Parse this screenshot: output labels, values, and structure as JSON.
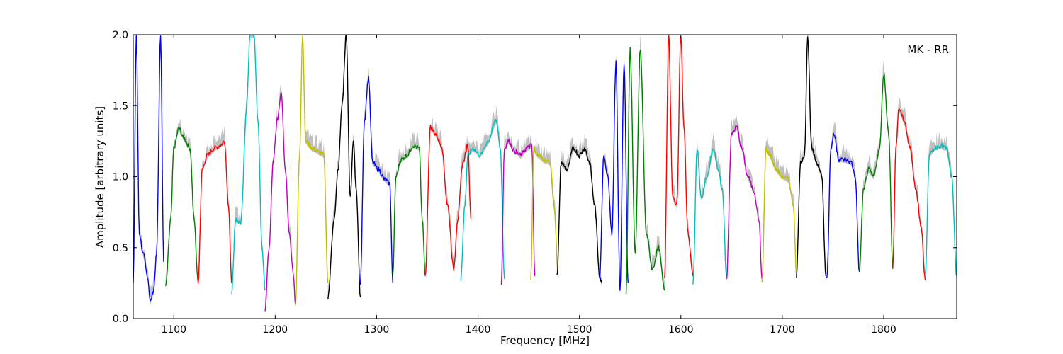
{
  "chart_data": {
    "type": "line",
    "xlabel": "Frequency [MHz]",
    "ylabel": "Amplitude [arbitrary units]",
    "annotation": "MK - RR",
    "xlim": [
      1060,
      1872
    ],
    "ylim": [
      0.0,
      2.0
    ],
    "x_ticks": [
      1100,
      1200,
      1300,
      1400,
      1500,
      1600,
      1700,
      1800
    ],
    "y_ticks": [
      0.0,
      0.5,
      1.0,
      1.5,
      2.0
    ],
    "x_tick_labels": [
      "1100",
      "1200",
      "1300",
      "1400",
      "1500",
      "1600",
      "1700",
      "1800"
    ],
    "y_tick_labels": [
      "0.0",
      "0.5",
      "1.0",
      "1.5",
      "2.0"
    ],
    "grid": false,
    "background_color": "#c0c0c0",
    "band_colors": [
      "#0000ff",
      "#008000",
      "#ff0000",
      "#00bfbf",
      "#bf00bf",
      "#bfbf00",
      "#000000"
    ],
    "series": [
      {
        "color": "#0000ff",
        "x": [
          1060,
          1063,
          1066,
          1070,
          1074,
          1077,
          1080,
          1083,
          1087,
          1090
        ],
        "y": [
          0.25,
          2.0,
          0.6,
          0.45,
          0.3,
          0.12,
          0.2,
          0.45,
          2.0,
          0.4
        ]
      },
      {
        "color": "#008000",
        "x": [
          1092,
          1097,
          1100,
          1105,
          1110,
          1116,
          1120,
          1124
        ],
        "y": [
          0.23,
          0.7,
          1.2,
          1.34,
          1.27,
          1.2,
          0.7,
          0.25
        ]
      },
      {
        "color": "#ff0000",
        "x": [
          1124,
          1128,
          1133,
          1140,
          1146,
          1150,
          1154,
          1157
        ],
        "y": [
          0.25,
          1.05,
          1.15,
          1.2,
          1.22,
          1.25,
          0.8,
          0.25
        ]
      },
      {
        "color": "#00bfbf",
        "x": [
          1157,
          1161,
          1166,
          1172,
          1175,
          1179,
          1183,
          1187,
          1190
        ],
        "y": [
          0.18,
          0.7,
          0.68,
          1.5,
          2.0,
          2.0,
          1.4,
          0.5,
          0.2
        ]
      },
      {
        "color": "#bf00bf",
        "x": [
          1190,
          1194,
          1198,
          1202,
          1206,
          1210,
          1214,
          1218,
          1220
        ],
        "y": [
          0.07,
          0.5,
          1.1,
          1.4,
          1.6,
          1.05,
          0.6,
          0.3,
          0.1
        ]
      },
      {
        "color": "#bfbf00",
        "x": [
          1220,
          1224,
          1227,
          1230,
          1237,
          1244,
          1248,
          1252
        ],
        "y": [
          0.1,
          1.15,
          2.0,
          1.25,
          1.2,
          1.17,
          1.15,
          0.25
        ]
      },
      {
        "color": "#000000",
        "x": [
          1252,
          1258,
          1262,
          1266,
          1270,
          1274,
          1277,
          1280,
          1284
        ],
        "y": [
          0.15,
          0.7,
          1.05,
          1.5,
          2.0,
          0.85,
          1.25,
          0.9,
          0.15
        ]
      },
      {
        "color": "#0000ff",
        "x": [
          1284,
          1288,
          1292,
          1296,
          1302,
          1308,
          1313,
          1316
        ],
        "y": [
          0.25,
          1.4,
          1.7,
          1.1,
          1.05,
          0.98,
          0.95,
          0.25
        ]
      },
      {
        "color": "#008000",
        "x": [
          1316,
          1319,
          1324,
          1330,
          1336,
          1342,
          1345,
          1348
        ],
        "y": [
          0.3,
          1.0,
          1.12,
          1.15,
          1.22,
          1.2,
          0.7,
          0.3
        ]
      },
      {
        "color": "#ff0000",
        "x": [
          1348,
          1353,
          1358,
          1364,
          1370,
          1376,
          1380,
          1385,
          1390,
          1393
        ],
        "y": [
          0.3,
          1.35,
          1.3,
          1.22,
          0.8,
          0.35,
          0.7,
          1.1,
          1.22,
          0.7
        ]
      },
      {
        "color": "#00bfbf",
        "x": [
          1383,
          1387,
          1390,
          1395,
          1402,
          1410,
          1418,
          1422,
          1426
        ],
        "y": [
          0.28,
          0.8,
          1.15,
          1.2,
          1.15,
          1.25,
          1.4,
          1.2,
          0.28
        ]
      },
      {
        "color": "#bf00bf",
        "x": [
          1423,
          1426,
          1430,
          1436,
          1442,
          1448,
          1453,
          1456
        ],
        "y": [
          0.25,
          1.2,
          1.25,
          1.18,
          1.15,
          1.2,
          1.22,
          0.3
        ]
      },
      {
        "color": "#bfbf00",
        "x": [
          1452,
          1455,
          1459,
          1465,
          1471,
          1475,
          1479
        ],
        "y": [
          0.28,
          1.2,
          1.15,
          1.12,
          1.1,
          0.8,
          0.3
        ]
      },
      {
        "color": "#000000",
        "x": [
          1478,
          1482,
          1488,
          1494,
          1500,
          1505,
          1510,
          1515,
          1520,
          1522
        ],
        "y": [
          0.3,
          1.1,
          1.05,
          1.2,
          1.15,
          1.2,
          1.1,
          0.8,
          0.3,
          0.25
        ]
      },
      {
        "color": "#0000ff",
        "x": [
          1520,
          1524,
          1528,
          1532,
          1536,
          1540,
          1544,
          1548
        ],
        "y": [
          0.3,
          1.15,
          1.0,
          0.6,
          1.8,
          0.2,
          1.8,
          0.25
        ]
      },
      {
        "color": "#008000",
        "x": [
          1546,
          1550,
          1555,
          1560,
          1566,
          1572,
          1578,
          1584
        ],
        "y": [
          0.18,
          1.9,
          0.45,
          1.9,
          0.6,
          0.35,
          0.5,
          0.2
        ]
      },
      {
        "color": "#ff0000",
        "x": [
          1584,
          1588,
          1592,
          1596,
          1600,
          1603,
          1607,
          1612
        ],
        "y": [
          0.3,
          2.0,
          0.85,
          0.8,
          2.0,
          1.35,
          0.6,
          0.3
        ]
      },
      {
        "color": "#00bfbf",
        "x": [
          1612,
          1616,
          1620,
          1626,
          1632,
          1637,
          1641,
          1645
        ],
        "y": [
          0.25,
          1.2,
          0.85,
          1.0,
          1.2,
          1.05,
          0.9,
          0.3
        ]
      },
      {
        "color": "#bf00bf",
        "x": [
          1645,
          1650,
          1655,
          1660,
          1666,
          1672,
          1677,
          1680
        ],
        "y": [
          0.28,
          1.3,
          1.35,
          1.2,
          1.0,
          0.9,
          0.7,
          0.28
        ]
      },
      {
        "color": "#bfbf00",
        "x": [
          1680,
          1684,
          1688,
          1694,
          1700,
          1706,
          1711,
          1714
        ],
        "y": [
          0.25,
          1.2,
          1.15,
          1.05,
          1.0,
          0.98,
          0.8,
          0.3
        ]
      },
      {
        "color": "#000000",
        "x": [
          1714,
          1718,
          1722,
          1725,
          1729,
          1734,
          1739,
          1743
        ],
        "y": [
          0.3,
          1.1,
          1.15,
          2.0,
          1.2,
          1.1,
          1.0,
          0.3
        ]
      },
      {
        "color": "#0000ff",
        "x": [
          1744,
          1748,
          1751,
          1756,
          1762,
          1768,
          1772,
          1776
        ],
        "y": [
          0.28,
          1.2,
          1.3,
          1.12,
          1.12,
          1.1,
          1.0,
          0.33
        ]
      },
      {
        "color": "#008000",
        "x": [
          1776,
          1780,
          1785,
          1790,
          1796,
          1800,
          1805,
          1809
        ],
        "y": [
          0.33,
          0.9,
          1.05,
          1.0,
          1.2,
          1.72,
          1.3,
          0.35
        ]
      },
      {
        "color": "#ff0000",
        "x": [
          1809,
          1812,
          1815,
          1820,
          1826,
          1832,
          1837,
          1841
        ],
        "y": [
          0.35,
          1.2,
          1.48,
          1.4,
          1.2,
          0.9,
          0.65,
          0.27
        ]
      },
      {
        "color": "#00bfbf",
        "x": [
          1841,
          1845,
          1850,
          1856,
          1862,
          1867,
          1872
        ],
        "y": [
          0.3,
          1.15,
          1.2,
          1.22,
          1.2,
          1.0,
          0.3
        ]
      }
    ]
  }
}
